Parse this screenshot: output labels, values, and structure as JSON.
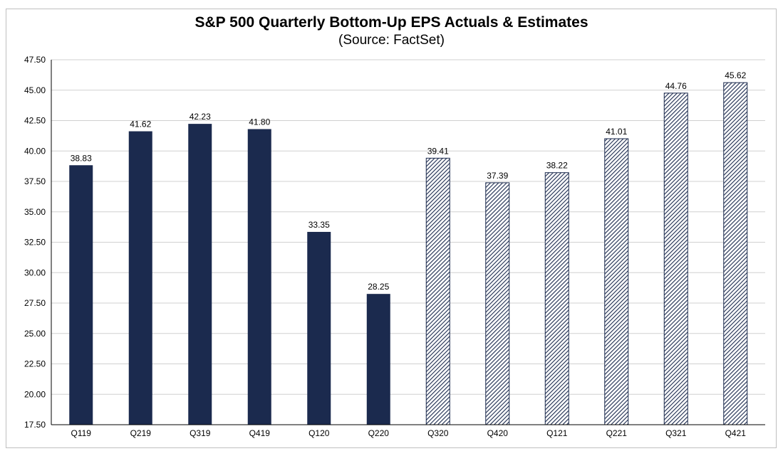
{
  "chart_data": {
    "type": "bar",
    "title": "S&P 500 Quarterly Bottom-Up EPS Actuals & Estimates",
    "subtitle": "(Source: FactSet)",
    "xlabel": "",
    "ylabel": "",
    "categories": [
      "Q119",
      "Q219",
      "Q319",
      "Q419",
      "Q120",
      "Q220",
      "Q320",
      "Q420",
      "Q121",
      "Q221",
      "Q321",
      "Q421"
    ],
    "values": [
      38.83,
      41.62,
      42.23,
      41.8,
      33.35,
      28.25,
      39.41,
      37.39,
      38.22,
      41.01,
      44.76,
      45.62
    ],
    "value_labels": [
      "38.83",
      "41.62",
      "42.23",
      "41.80",
      "33.35",
      "28.25",
      "39.41",
      "37.39",
      "38.22",
      "41.01",
      "44.76",
      "45.62"
    ],
    "bar_style": [
      "actual",
      "actual",
      "actual",
      "actual",
      "actual",
      "actual",
      "estimate",
      "estimate",
      "estimate",
      "estimate",
      "estimate",
      "estimate"
    ],
    "ylim": [
      17.5,
      47.5
    ],
    "yticks": [
      "17.50",
      "20.00",
      "22.50",
      "25.00",
      "27.50",
      "30.00",
      "32.50",
      "35.00",
      "37.50",
      "40.00",
      "42.50",
      "45.00",
      "47.50"
    ],
    "grid": true,
    "legend": "none",
    "colors": {
      "actual": "#1b2a4e",
      "estimate": "#1b2a4e",
      "grid": "#d0d0d0"
    }
  }
}
